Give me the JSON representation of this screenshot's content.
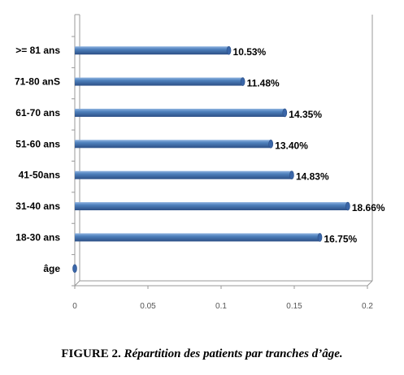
{
  "caption": {
    "label": "FIGURE 2.",
    "text": "Répartition des patients par tranches d’âge."
  },
  "colors": {
    "bar": "#4f81bd",
    "highlight_label": "#c00000"
  },
  "chart_data": {
    "type": "bar",
    "orientation": "horizontal",
    "style": "3d-cylinder",
    "categories": [
      "âge",
      "18-30 ans",
      "31-40 ans",
      "41-50ans",
      "51-60 ans",
      "61-70 ans",
      "71-80 anS",
      ">= 81 ans"
    ],
    "values": [
      0,
      0.1675,
      0.1866,
      0.1483,
      0.134,
      0.1435,
      0.1148,
      0.1053
    ],
    "data_labels": [
      "",
      "16.75%",
      "18.66%",
      "14.83%",
      "13.40%",
      "14.35%",
      "11.48%",
      "10.53%"
    ],
    "highlighted_category": "31-40 ans",
    "xlim": [
      0,
      0.2
    ],
    "xticks": [
      "0",
      "0.05",
      "0.1",
      "0.15",
      "0.2"
    ],
    "grid": false,
    "legend": "none",
    "xlabel": "",
    "ylabel": ""
  }
}
